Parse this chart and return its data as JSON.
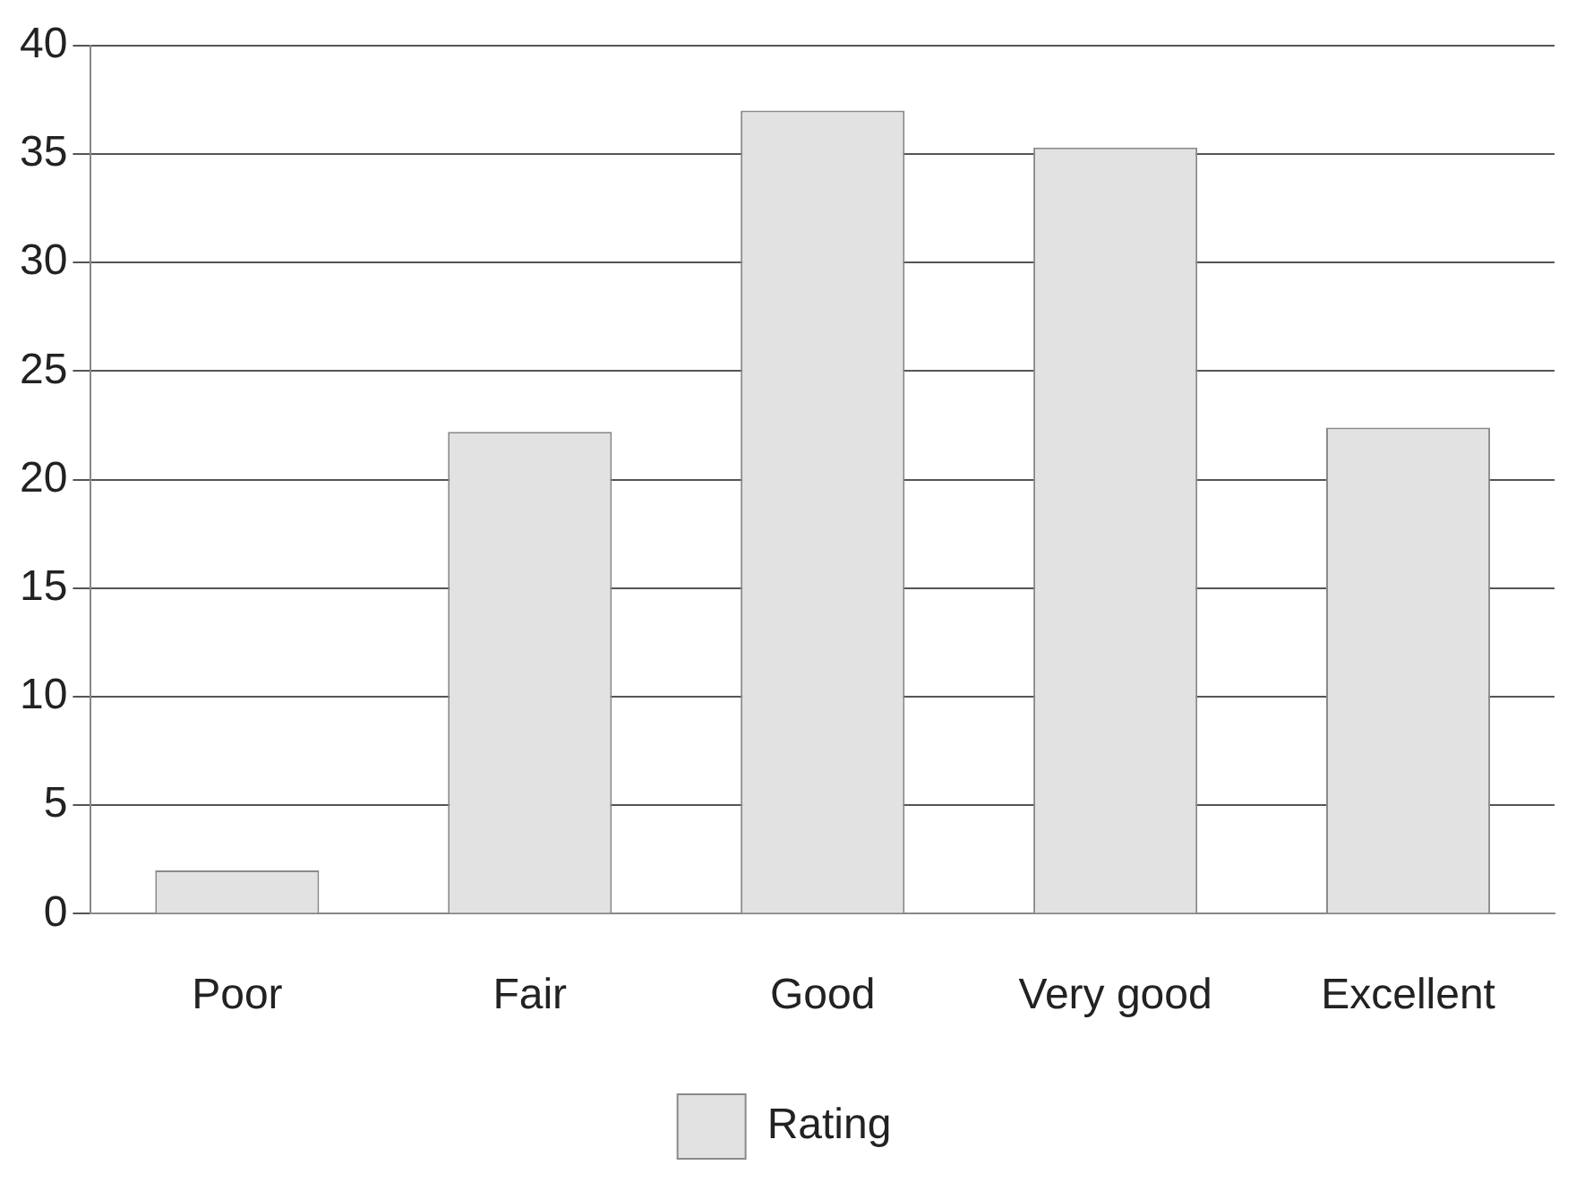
{
  "chart_data": {
    "type": "bar",
    "categories": [
      "Poor",
      "Fair",
      "Good",
      "Very good",
      "Excellent"
    ],
    "series": [
      {
        "name": "Rating",
        "color": "#e2e2e2",
        "values": [
          2,
          22.2,
          37,
          35.3,
          22.4
        ]
      }
    ],
    "ylim": [
      0,
      40
    ],
    "yticks": [
      0,
      5,
      10,
      15,
      20,
      25,
      30,
      35,
      40
    ],
    "grid": "y",
    "legend": "bottom"
  }
}
